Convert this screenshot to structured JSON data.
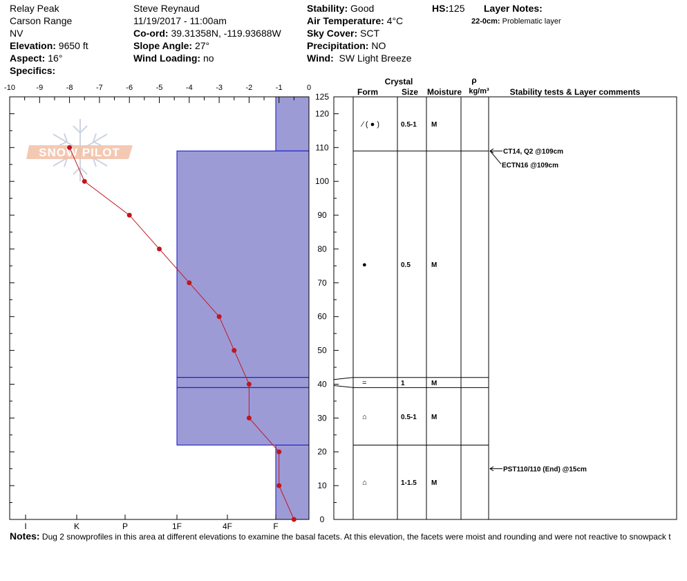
{
  "header": {
    "location": "Relay Peak",
    "range": "Carson Range",
    "state": "NV",
    "elevation_label": "Elevation:",
    "elevation": "9650 ft",
    "aspect_label": "Aspect:",
    "aspect": "16°",
    "specifics_label": "Specifics:",
    "observer": "Steve Reynaud",
    "datetime": "11/19/2017 - 11:00am",
    "coord_label": "Co-ord:",
    "coord": "39.31358N, -119.93688W",
    "slope_label": "Slope Angle:",
    "slope": "27°",
    "wind_loading_label": "Wind Loading:",
    "wind_loading": "no",
    "stability_label": "Stability:",
    "stability": "Good",
    "air_temp_label": "Air Temperature:",
    "air_temp": "4°C",
    "sky_label": "Sky Cover:",
    "sky": "SCT",
    "precip_label": "Precipitation:",
    "precip": "NO",
    "wind_label": "Wind:",
    "wind": "SW Light Breeze",
    "hs_label": "HS:",
    "hs": "125",
    "layer_notes_label": "Layer Notes:",
    "layer_note_depth": "22-0cm:",
    "layer_note_text": "Problematic layer"
  },
  "logo_text": "SNOW PILOT",
  "chart_data": {
    "type": "line",
    "x_label_ticks": [
      "-10",
      "-9",
      "-8",
      "-7",
      "-6",
      "-5",
      "-4",
      "-3",
      "-2",
      "-1",
      "0"
    ],
    "xlim": [
      -10,
      0
    ],
    "ylim": [
      0,
      125
    ],
    "y_ticks": [
      0,
      10,
      20,
      30,
      40,
      50,
      60,
      70,
      80,
      90,
      100,
      110,
      120,
      125
    ],
    "hardness_scale": [
      "I",
      "K",
      "P",
      "1F",
      "4F",
      "F"
    ],
    "temperature_profile": [
      {
        "height": 110,
        "temp": -8.0
      },
      {
        "height": 100,
        "temp": -7.5
      },
      {
        "height": 90,
        "temp": -6.0
      },
      {
        "height": 80,
        "temp": -5.0
      },
      {
        "height": 70,
        "temp": -4.0
      },
      {
        "height": 60,
        "temp": -3.0
      },
      {
        "height": 50,
        "temp": -2.5
      },
      {
        "height": 40,
        "temp": -2.0
      },
      {
        "height": 30,
        "temp": -2.0
      },
      {
        "height": 20,
        "temp": -1.0
      },
      {
        "height": 10,
        "temp": -1.0
      },
      {
        "height": 0,
        "temp": -0.5
      }
    ],
    "hardness_layers": [
      {
        "top": 125,
        "bottom": 109,
        "hardness": "F"
      },
      {
        "top": 109,
        "bottom": 42,
        "hardness": "1F"
      },
      {
        "top": 42,
        "bottom": 39,
        "hardness": "1F"
      },
      {
        "top": 39,
        "bottom": 22,
        "hardness": "1F"
      },
      {
        "top": 22,
        "bottom": 0,
        "hardness": "F"
      }
    ],
    "table_headers": {
      "crystal": "Crystal",
      "form": "Form",
      "size": "Size",
      "moisture": "Moisture",
      "rho": "ρ",
      "density_unit": "kg/m³",
      "stability": "Stability tests & Layer comments"
    },
    "layers": [
      {
        "top": 125,
        "bottom": 109,
        "form": "⁄ ( ● )",
        "size": "0.5-1",
        "moisture": "M"
      },
      {
        "top": 109,
        "bottom": 42,
        "form": "●",
        "size": "0.5",
        "moisture": "M"
      },
      {
        "top": 42,
        "bottom": 39,
        "form": "=",
        "size": "1",
        "moisture": "M"
      },
      {
        "top": 39,
        "bottom": 22,
        "form": "⌂",
        "size": "0.5-1",
        "moisture": "M"
      },
      {
        "top": 22,
        "bottom": 0,
        "form": "⌂",
        "size": "1-1.5",
        "moisture": "M"
      }
    ],
    "tests": [
      {
        "height": 109,
        "label": "CT14, Q2 @109cm"
      },
      {
        "height": 109,
        "label": "ECTN16 @109cm"
      },
      {
        "height": 15,
        "label": "PST110/110 (End) @15cm"
      }
    ]
  },
  "notes": {
    "label": "Notes:",
    "text": "Dug 2 snowprofiles in this area at different elevations to examine the basal facets.  At this elevation, the facets were moist and rounding and were not reactive to snowpack t"
  },
  "colors": {
    "hardness_fill": "#9d9bd6",
    "hardness_line": "#1010c8",
    "profile": "#c0161e"
  }
}
